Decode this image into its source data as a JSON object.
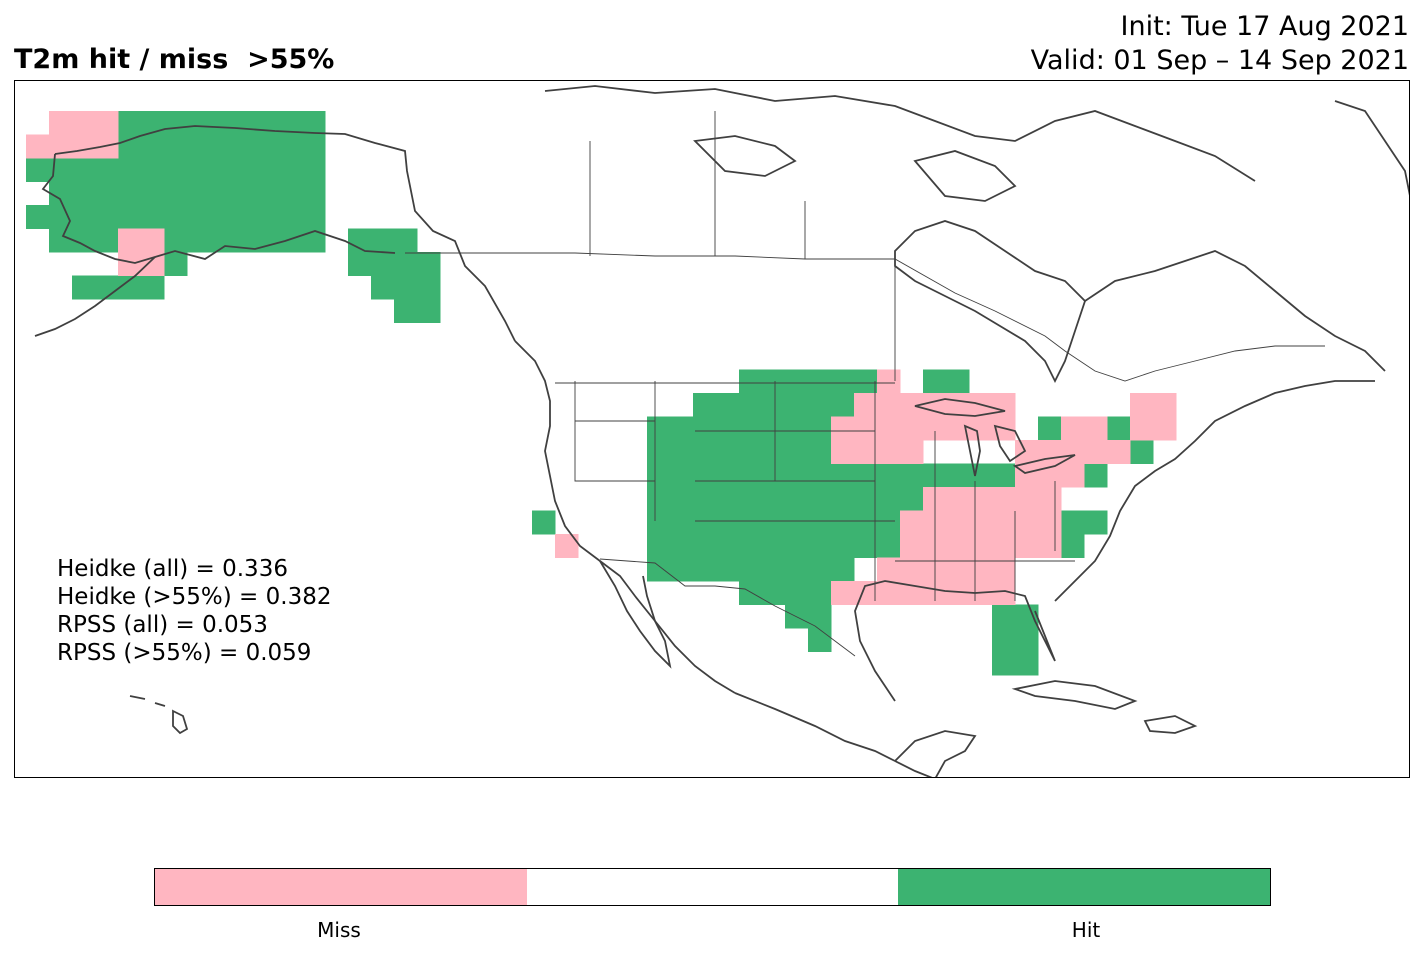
{
  "title": "T2m hit / miss  >55%",
  "init_label": "Init: Tue 17 Aug 2021",
  "valid_label": "Valid: 01 Sep – 14 Sep 2021",
  "stats": [
    "Heidke (all) = 0.336",
    "Heidke (>55%) = 0.382",
    "RPSS (all) = 0.053",
    "RPSS (>55%) = 0.059"
  ],
  "colors": {
    "miss": "#FFB6C1",
    "neutral": "#FFFFFF",
    "hit": "#3CB371",
    "coast": "#404040"
  },
  "colorbar": {
    "labels": [
      "Miss",
      "Hit"
    ]
  },
  "icons": [
    "map-grid",
    "coastline",
    "colorbar"
  ]
}
